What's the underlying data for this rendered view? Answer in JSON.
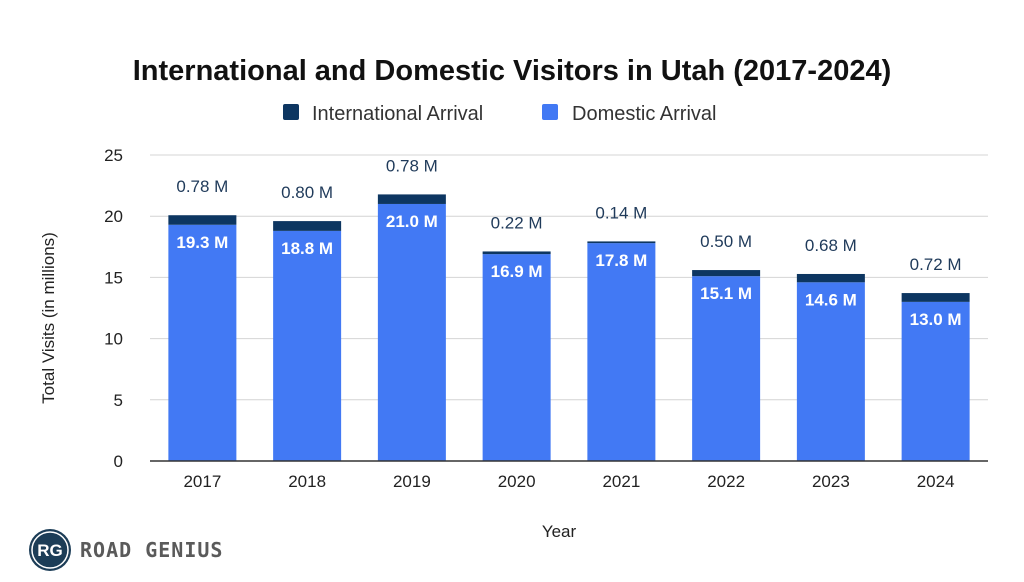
{
  "chart_data": {
    "type": "bar",
    "stacked": true,
    "title": "International and Domestic Visitors in Utah (2017-2024)",
    "xlabel": "Year",
    "ylabel": "Total Visits (in millions)",
    "ylim": [
      0,
      25
    ],
    "yticks": [
      0,
      5,
      10,
      15,
      20,
      25
    ],
    "grid": true,
    "legend_position": "top",
    "categories": [
      "2017",
      "2018",
      "2019",
      "2020",
      "2021",
      "2022",
      "2023",
      "2024"
    ],
    "series": [
      {
        "name": "Domestic Arrival",
        "color": "#4279f4",
        "values": [
          19.3,
          18.8,
          21.0,
          16.9,
          17.8,
          15.1,
          14.6,
          13.0
        ],
        "labels": [
          "19.3 M",
          "18.8 M",
          "21.0 M",
          "16.9 M",
          "17.8 M",
          "15.1 M",
          "14.6 M",
          "13.0 M"
        ]
      },
      {
        "name": "International Arrival",
        "color": "#0d3661",
        "values": [
          0.78,
          0.8,
          0.78,
          0.22,
          0.14,
          0.5,
          0.68,
          0.72
        ],
        "labels": [
          "0.78 M",
          "0.80 M",
          "0.78 M",
          "0.22 M",
          "0.14 M",
          "0.50 M",
          "0.68 M",
          "0.72 M"
        ]
      }
    ],
    "legend": [
      "International Arrival",
      "Domestic Arrival"
    ]
  },
  "brand": {
    "logo_text": "RG",
    "name": "ROAD GENIUS"
  }
}
